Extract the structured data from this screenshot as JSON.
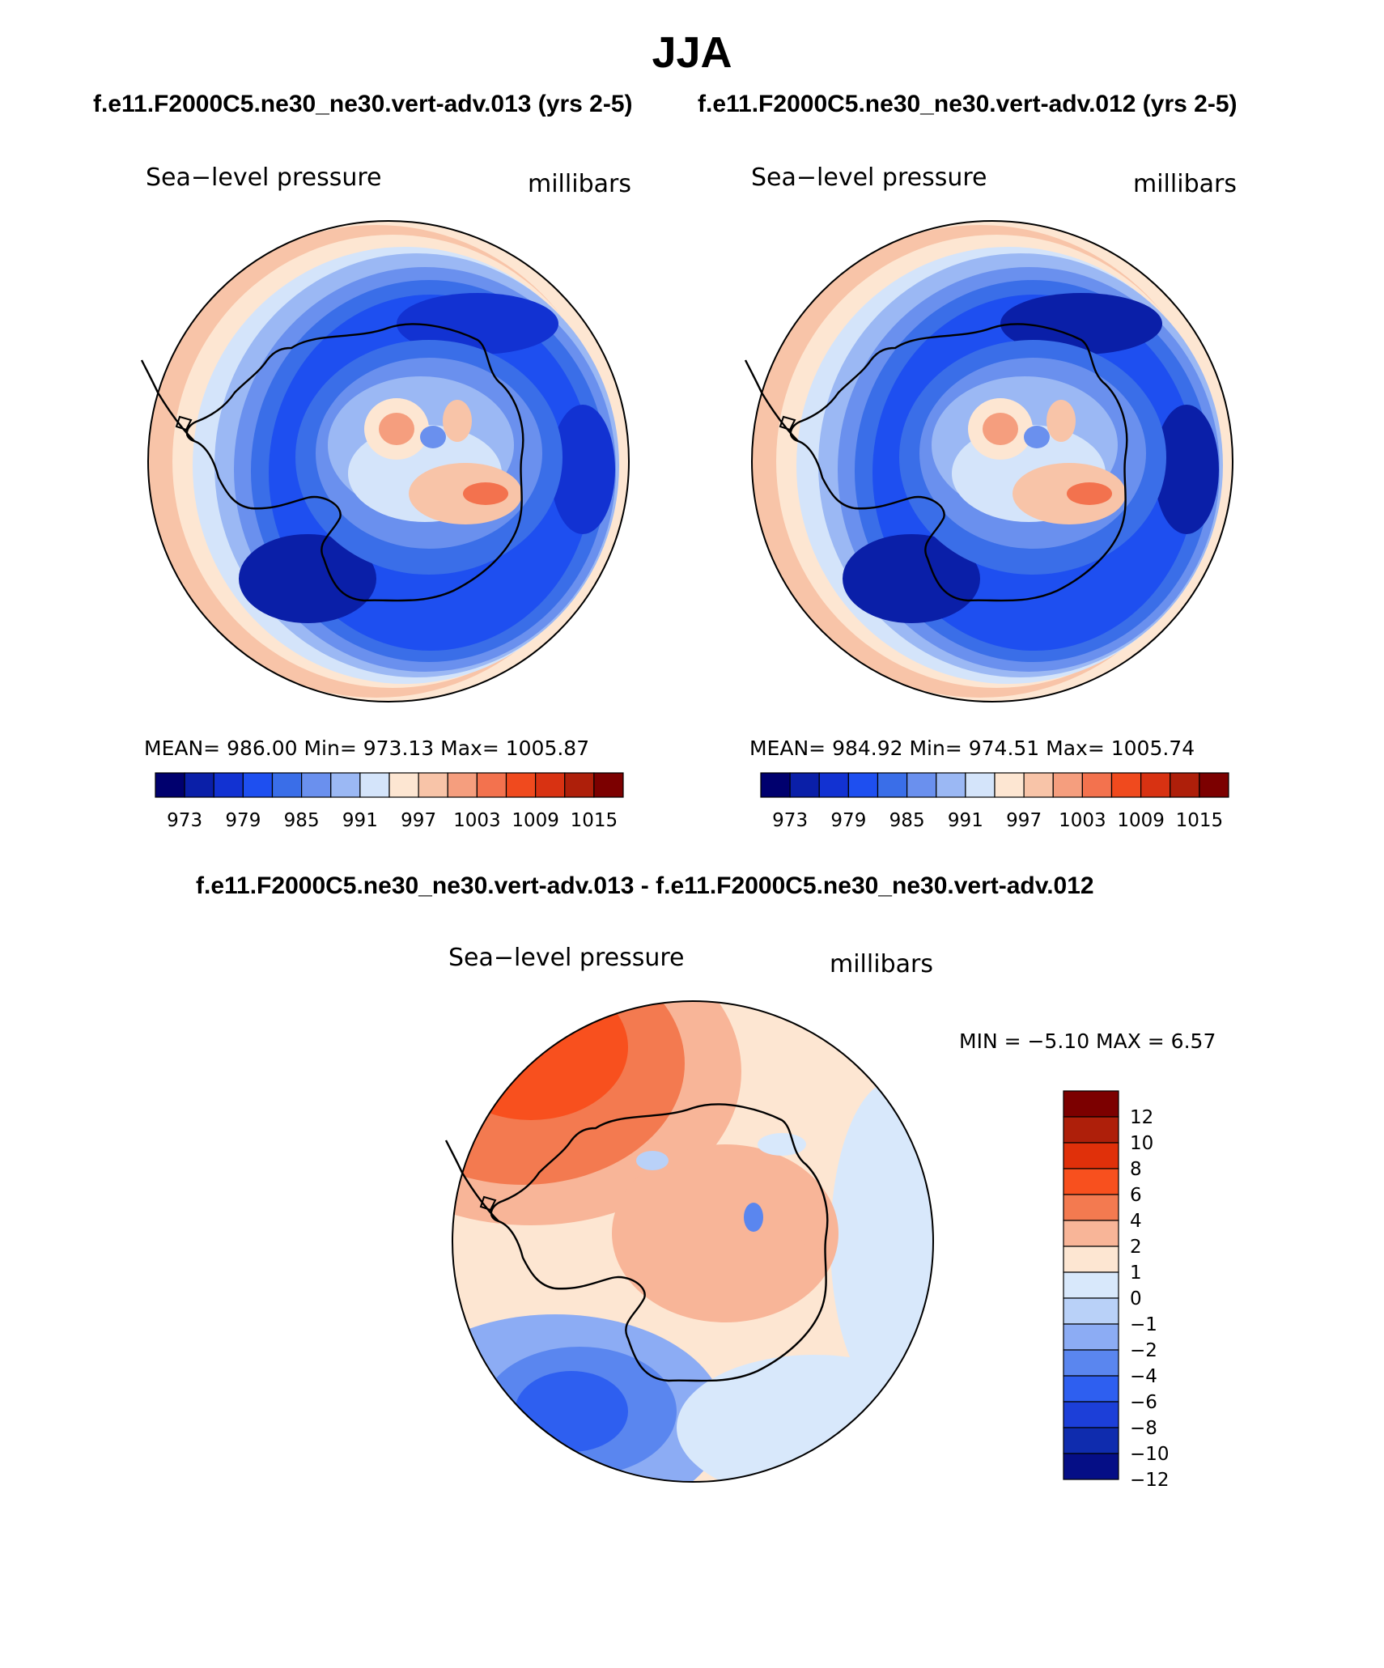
{
  "title": "JJA",
  "subtitle_left": "f.e11.F2000C5.ne30_ne30.vert-adv.013 (yrs 2-5)",
  "subtitle_right": "f.e11.F2000C5.ne30_ne30.vert-adv.012 (yrs 2-5)",
  "diff_title": "f.e11.F2000C5.ne30_ne30.vert-adv.013 - f.e11.F2000C5.ne30_ne30.vert-adv.012",
  "panels": [
    {
      "variable": "Sea−level pressure",
      "units": "millibars",
      "stats": "MEAN=  986.00    Min=  973.13    Max=  1005.87"
    },
    {
      "variable": "Sea−level pressure",
      "units": "millibars",
      "stats": "MEAN=  984.92    Min=  974.51    Max=  1005.74"
    },
    {
      "variable": "Sea−level pressure",
      "units": "millibars",
      "stats": "MIN =   −5.10  MAX =     6.57"
    }
  ],
  "chart_data": [
    {
      "type": "heatmap",
      "projection": "south-polar-stereographic",
      "title": "f.e11.F2000C5.ne30_ne30.vert-adv.013 (yrs 2-5)",
      "variable": "Sea-level pressure",
      "units": "millibars",
      "mean": 986.0,
      "min": 973.13,
      "max": 1005.87,
      "levels": [
        973,
        976,
        979,
        982,
        985,
        988,
        991,
        994,
        997,
        1000,
        1003,
        1006,
        1009,
        1012,
        1015
      ],
      "tick_labels": [
        "973",
        "979",
        "985",
        "991",
        "997",
        "1003",
        "1009",
        "1015"
      ]
    },
    {
      "type": "heatmap",
      "projection": "south-polar-stereographic",
      "title": "f.e11.F2000C5.ne30_ne30.vert-adv.012 (yrs 2-5)",
      "variable": "Sea-level pressure",
      "units": "millibars",
      "mean": 984.92,
      "min": 974.51,
      "max": 1005.74,
      "levels": [
        973,
        976,
        979,
        982,
        985,
        988,
        991,
        994,
        997,
        1000,
        1003,
        1006,
        1009,
        1012,
        1015
      ],
      "tick_labels": [
        "973",
        "979",
        "985",
        "991",
        "997",
        "1003",
        "1009",
        "1015"
      ]
    },
    {
      "type": "heatmap",
      "projection": "south-polar-stereographic",
      "title": "f.e11.F2000C5.ne30_ne30.vert-adv.013 - f.e11.F2000C5.ne30_ne30.vert-adv.012",
      "variable": "Sea-level pressure",
      "units": "millibars",
      "min": -5.1,
      "max": 6.57,
      "levels": [
        12,
        10,
        8,
        6,
        4,
        2,
        1,
        0,
        -1,
        -2,
        -4,
        -6,
        -8,
        -10,
        -12
      ],
      "tick_labels": [
        "12",
        "10",
        "8",
        "6",
        "4",
        "2",
        "1",
        "0",
        "−1",
        "−2",
        "−4",
        "−6",
        "−8",
        "−10",
        "−12"
      ]
    }
  ],
  "colors": {
    "palette16": [
      "#00006e",
      "#0a1fa8",
      "#1232d2",
      "#1e4ff0",
      "#3a6ee8",
      "#6a90ee",
      "#9bb8f4",
      "#d4e4fa",
      "#fde6d2",
      "#f8c4a8",
      "#f59e7e",
      "#f3724e",
      "#f04a1e",
      "#d83212",
      "#ae1f0a",
      "#7c0000"
    ],
    "diff_palette": [
      "#7c0000",
      "#ae1f0a",
      "#e0300a",
      "#f8501e",
      "#f37a50",
      "#f8b598",
      "#fde6d2",
      "#d8e8fb",
      "#b9d1f8",
      "#8cacf4",
      "#5a86ef",
      "#2e5ff0",
      "#1c3fd8",
      "#0f2cae",
      "#050e86"
    ]
  }
}
